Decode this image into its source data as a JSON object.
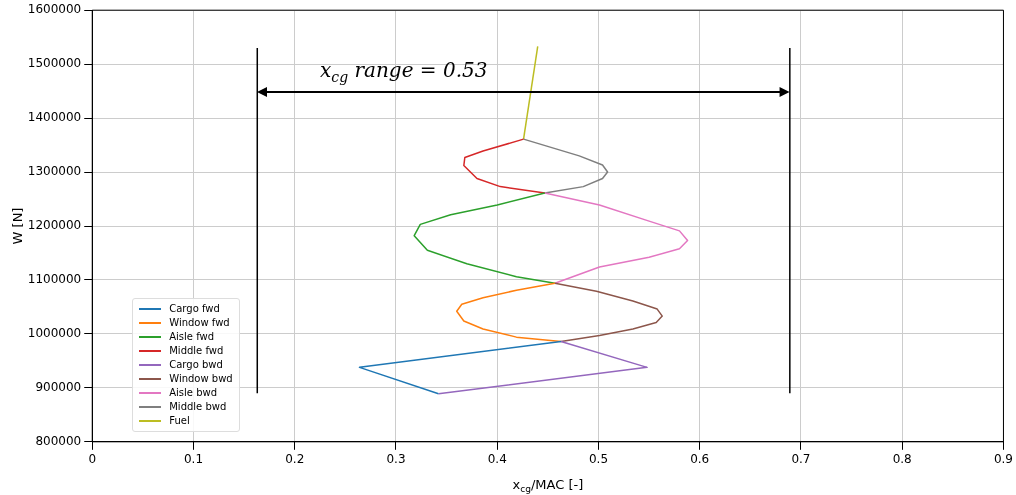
{
  "chart_data": {
    "type": "line",
    "xlabel": "x$_{cg}$/MAC [-]",
    "ylabel": "W [N]",
    "annotations": [
      "x$_{cg}$ range = 0.53"
    ],
    "xlim": [
      0,
      0.9
    ],
    "xticks": [
      0,
      0.1,
      0.2,
      0.3,
      0.4,
      0.5,
      0.6,
      0.7,
      0.8,
      0.9
    ],
    "ylim": [
      800000,
      1600000
    ],
    "yticks": [
      800000,
      900000,
      1000000,
      1100000,
      1200000,
      1300000,
      1400000,
      1500000,
      1600000
    ],
    "grid": true,
    "legend": "bottom left",
    "marker": "none",
    "line_style": "solid",
    "series": [
      {
        "name": "Cargo fwd",
        "color": "#1f77b4",
        "x": [
          0.342,
          0.264,
          0.463
        ],
        "values": [
          889000,
          938000,
          986000
        ]
      },
      {
        "name": "Window fwd",
        "color": "#ff7f0e",
        "x": [
          0.463,
          0.419,
          0.386,
          0.367,
          0.36,
          0.365,
          0.386,
          0.419,
          0.457
        ],
        "values": [
          986000,
          994000,
          1009000,
          1024000,
          1042000,
          1055000,
          1067000,
          1081000,
          1094000
        ]
      },
      {
        "name": "Aisle fwd",
        "color": "#2ca02c",
        "x": [
          0.457,
          0.419,
          0.37,
          0.331,
          0.318,
          0.324,
          0.354,
          0.4,
          0.447
        ],
        "values": [
          1094000,
          1106000,
          1130000,
          1155000,
          1182000,
          1203000,
          1221000,
          1239000,
          1261000
        ]
      },
      {
        "name": "Middle fwd",
        "color": "#d62728",
        "x": [
          0.447,
          0.403,
          0.38,
          0.367,
          0.368,
          0.386,
          0.426
        ],
        "values": [
          1261000,
          1273000,
          1288000,
          1312000,
          1327000,
          1339000,
          1361000
        ]
      },
      {
        "name": "Cargo bwd",
        "color": "#9467bd",
        "x": [
          0.342,
          0.548,
          0.463
        ],
        "values": [
          889000,
          938000,
          986000
        ]
      },
      {
        "name": "Window bwd",
        "color": "#8c564b",
        "x": [
          0.463,
          0.501,
          0.534,
          0.557,
          0.563,
          0.558,
          0.534,
          0.498,
          0.457
        ],
        "values": [
          986000,
          997000,
          1009000,
          1021000,
          1033000,
          1046000,
          1061000,
          1079000,
          1094000
        ]
      },
      {
        "name": "Aisle bwd",
        "color": "#e377c2",
        "x": [
          0.457,
          0.501,
          0.55,
          0.58,
          0.588,
          0.58,
          0.55,
          0.501,
          0.447
        ],
        "values": [
          1094000,
          1124000,
          1142000,
          1158000,
          1173000,
          1191000,
          1209000,
          1239000,
          1261000
        ]
      },
      {
        "name": "Middle bwd",
        "color": "#7f7f7f",
        "x": [
          0.447,
          0.485,
          0.504,
          0.509,
          0.504,
          0.481,
          0.426
        ],
        "values": [
          1261000,
          1273000,
          1288000,
          1300000,
          1313000,
          1330000,
          1361000
        ]
      },
      {
        "name": "Fuel",
        "color": "#bcbd22",
        "x": [
          0.426,
          0.44
        ],
        "values": [
          1361000,
          1533000
        ]
      },
      {
        "color": "#000000",
        "x": [
          0.163,
          0.163
        ],
        "values": [
          890000,
          1530000
        ]
      },
      {
        "color": "#000000",
        "x": [
          0.689,
          0.689
        ],
        "values": [
          890000,
          1530000
        ]
      }
    ]
  }
}
